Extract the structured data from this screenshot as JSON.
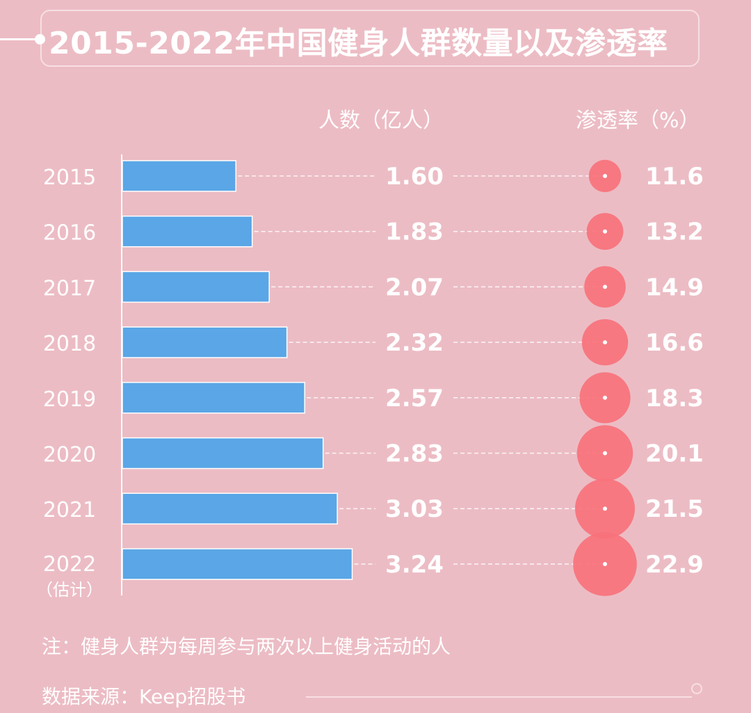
{
  "title": "2015-2022年中国健身人群数量以及渗透率",
  "headers": {
    "count": "人数（亿人）",
    "rate": "渗透率（%）"
  },
  "colors": {
    "background": "#ecbcc4",
    "bar": "#5aa6e6",
    "bubble": "#f7727b",
    "text": "#ffffff"
  },
  "chart_data": {
    "type": "bar",
    "title": "2015-2022年中国健身人群数量以及渗透率",
    "categories": [
      "2015",
      "2016",
      "2017",
      "2018",
      "2019",
      "2020",
      "2021",
      "2022"
    ],
    "category_notes": [
      "",
      "",
      "",
      "",
      "",
      "",
      "",
      "（估计）"
    ],
    "series": [
      {
        "name": "人数（亿人）",
        "values": [
          1.6,
          1.83,
          2.07,
          2.32,
          2.57,
          2.83,
          3.03,
          3.24
        ],
        "labels": [
          "1.60",
          "1.83",
          "2.07",
          "2.32",
          "2.57",
          "2.83",
          "3.03",
          "3.24"
        ]
      },
      {
        "name": "渗透率（%）",
        "values": [
          11.6,
          13.2,
          14.9,
          16.6,
          18.3,
          20.1,
          21.5,
          22.9
        ],
        "labels": [
          "11.6",
          "13.2",
          "14.9",
          "16.6",
          "18.3",
          "20.1",
          "21.5",
          "22.9"
        ]
      }
    ]
  },
  "note": "注：健身人群为每周参与两次以上健身活动的人",
  "source": "数据来源：Keep招股书"
}
